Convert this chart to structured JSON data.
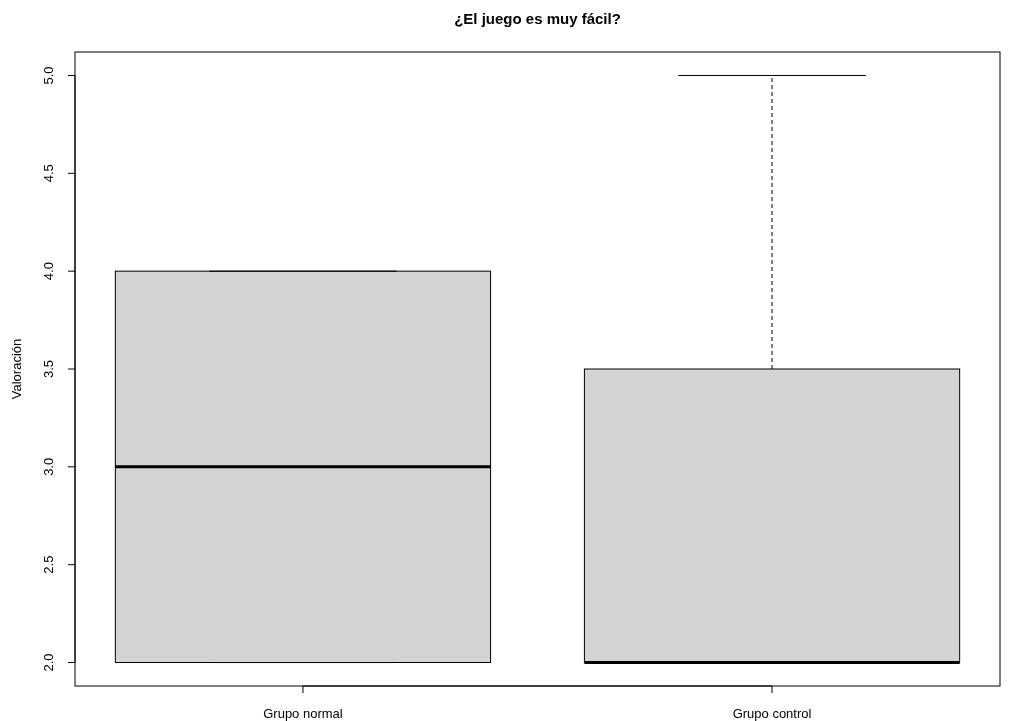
{
  "chart_data": {
    "type": "box",
    "title": "¿El juego es muy fácil?",
    "ylabel": "Valoración",
    "categories": [
      "Grupo normal",
      "Grupo control"
    ],
    "color": "#d3d3d3",
    "boxes": [
      {
        "low": 2,
        "q1": 2,
        "median": 3,
        "q3": 4,
        "high": 4
      },
      {
        "low": 2,
        "q1": 2,
        "median": 2,
        "q3": 3.5,
        "high": 5
      }
    ],
    "ylim": [
      1.88,
      5.12
    ],
    "yticks": [
      {
        "value": 2,
        "label": "2.0"
      },
      {
        "value": 2.5,
        "label": "2.5"
      },
      {
        "value": 3,
        "label": "3.0"
      },
      {
        "value": 3.5,
        "label": "3.5"
      },
      {
        "value": 4,
        "label": "4.0"
      },
      {
        "value": 4.5,
        "label": "4.5"
      },
      {
        "value": 5,
        "label": "5.0"
      }
    ],
    "grid": false
  }
}
